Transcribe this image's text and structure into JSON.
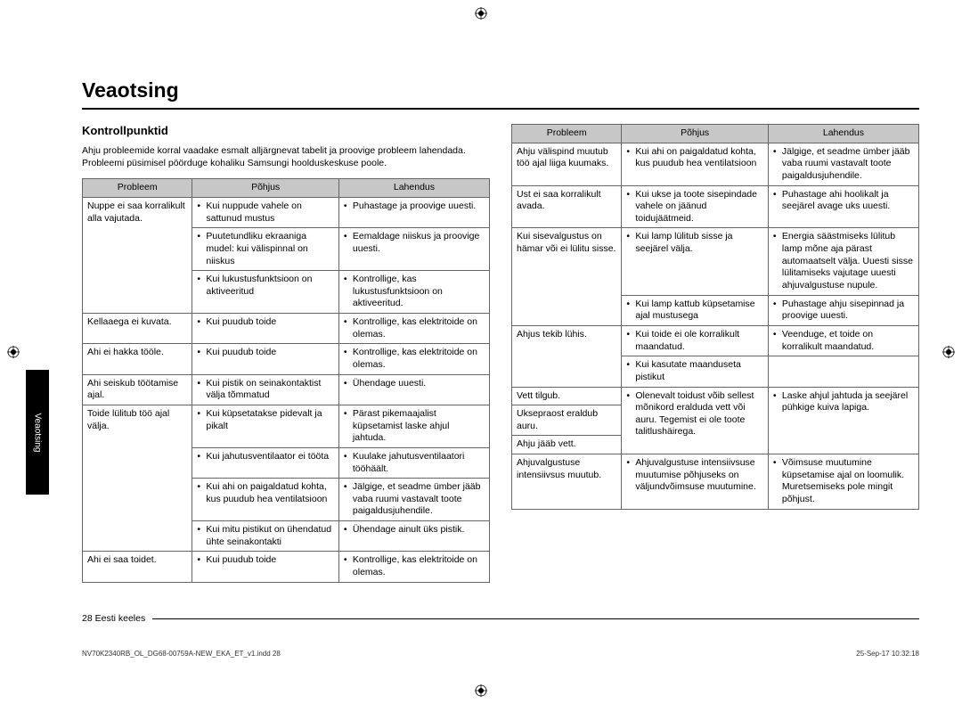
{
  "title": "Veaotsing",
  "subtitle": "Kontrollpunktid",
  "intro": "Ahju probleemide korral vaadake esmalt alljärgnevat tabelit ja proovige probleem lahendada. Probleemi püsimisel pöörduge kohaliku Samsungi hoolduskeskuse poole.",
  "headers": {
    "problem": "Probleem",
    "cause": "Põhjus",
    "solution": "Lahendus"
  },
  "side_tab": "Veaotsing",
  "footer": "28 Eesti keeles",
  "imprint_left": "NV70K2340RB_OL_DG68-00759A-NEW_EKA_ET_v1.indd   28",
  "imprint_right": "25-Sep-17   10:32:18",
  "table1": [
    {
      "problem": "Nuppe ei saa korralikult alla vajutada.",
      "rows": [
        {
          "cause": "Kui nuppude vahele on sattunud mustus",
          "solution": "Puhastage ja proovige uuesti."
        },
        {
          "cause": "Puutetundliku ekraaniga mudel: kui välispinnal on niiskus",
          "solution": "Eemaldage niiskus ja proovige uuesti."
        },
        {
          "cause": "Kui lukustusfunktsioon on aktiveeritud",
          "solution": "Kontrollige, kas lukustusfunktsioon on aktiveeritud."
        }
      ]
    },
    {
      "problem": "Kellaaega ei kuvata.",
      "rows": [
        {
          "cause": "Kui puudub toide",
          "solution": "Kontrollige, kas elektritoide on olemas."
        }
      ]
    },
    {
      "problem": "Ahi ei hakka tööle.",
      "rows": [
        {
          "cause": "Kui puudub toide",
          "solution": "Kontrollige, kas elektritoide on olemas."
        }
      ]
    },
    {
      "problem": "Ahi seiskub töötamise ajal.",
      "rows": [
        {
          "cause": "Kui pistik on seinakontaktist välja tõmmatud",
          "solution": "Ühendage uuesti."
        }
      ]
    },
    {
      "problem": "Toide lülitub töö ajal välja.",
      "rows": [
        {
          "cause": "Kui küpsetatakse pidevalt ja pikalt",
          "solution": "Pärast pikemaajalist küpsetamist laske ahjul jahtuda."
        },
        {
          "cause": "Kui jahutusventilaator ei tööta",
          "solution": "Kuulake jahutusventilaatori tööhäält."
        },
        {
          "cause": "Kui ahi on paigaldatud kohta, kus puudub hea ventilatsioon",
          "solution": "Jälgige, et seadme ümber jääb vaba ruumi vastavalt toote paigaldusjuhendile."
        },
        {
          "cause": "Kui mitu pistikut on ühendatud ühte seinakontakti",
          "solution": "Ühendage ainult üks pistik."
        }
      ]
    },
    {
      "problem": "Ahi ei saa toidet.",
      "rows": [
        {
          "cause": "Kui puudub toide",
          "solution": "Kontrollige, kas elektritoide on olemas."
        }
      ]
    }
  ],
  "table2": [
    {
      "problem": "Ahju välispind muutub töö ajal liiga kuumaks.",
      "rows": [
        {
          "cause": "Kui ahi on paigaldatud kohta, kus puudub hea ventilatsioon",
          "solution": "Jälgige, et seadme ümber jääb vaba ruumi vastavalt toote paigaldusjuhendile."
        }
      ]
    },
    {
      "problem": "Ust ei saa korralikult avada.",
      "rows": [
        {
          "cause": "Kui ukse ja toote sisepindade vahele on jäänud toidujäätmeid.",
          "solution": "Puhastage ahi hoolikalt ja seejärel avage uks uuesti."
        }
      ]
    },
    {
      "problem": "Kui sisevalgustus on hämar või ei lülitu sisse.",
      "rows": [
        {
          "cause": "Kui lamp lülitub sisse ja seejärel välja.",
          "solution": "Energia säästmiseks lülitub lamp mõne aja pärast automaatselt välja. Uuesti sisse lülitamiseks vajutage uuesti ahjuvalgustuse nupule."
        },
        {
          "cause": "Kui lamp kattub küpsetamise ajal mustusega",
          "solution": "Puhastage ahju sisepinnad ja proovige uuesti."
        }
      ]
    },
    {
      "problem": "Ahjus tekib lühis.",
      "rows": [
        {
          "cause": "Kui toide ei ole korralikult maandatud.",
          "solution": "Veenduge, et toide on korralikult maandatud."
        },
        {
          "cause": "Kui kasutate maanduseta pistikut",
          "solution": ""
        }
      ]
    },
    {
      "problem": "Vett tilgub.",
      "rows": [
        {
          "cause": "Olenevalt toidust võib sellest mõnikord eralduda vett või auru. Tegemist ei ole toote talitlushäirega.",
          "solution": "Laske ahjul jahtuda ja seejärel pühkige kuiva lapiga.",
          "causeRowspan": 3,
          "solutionRowspan": 3
        }
      ]
    },
    {
      "problem": "Uksepraost eraldub auru.",
      "rows": []
    },
    {
      "problem": "Ahju jääb vett.",
      "rows": []
    },
    {
      "problem": "Ahjuvalgustuse intensiivsus muutub.",
      "rows": [
        {
          "cause": "Ahjuvalgustuse intensiivsuse muutumise põhjuseks on väljundvõimsuse muutumine.",
          "solution": "Võimsuse muutumine küpsetamise ajal on loomulik. Muretsemiseks pole mingit põhjust."
        }
      ]
    }
  ]
}
